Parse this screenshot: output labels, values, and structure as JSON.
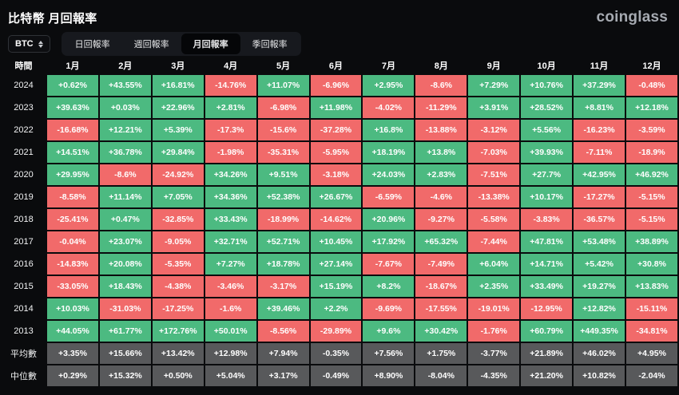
{
  "header": {
    "title": "比特幣 月回報率",
    "logo": "coinglass"
  },
  "toolbar": {
    "symbol": "BTC",
    "tabs": [
      {
        "label": "日回報率",
        "active": false
      },
      {
        "label": "週回報率",
        "active": false
      },
      {
        "label": "月回報率",
        "active": true
      },
      {
        "label": "季回報率",
        "active": false
      }
    ]
  },
  "colors": {
    "positive": "#4CBA81",
    "negative": "#F16A6A",
    "summary": "#58595B",
    "background": "#0A0B0D"
  },
  "chart_data": {
    "type": "table",
    "title": "比特幣 月回報率",
    "columns": [
      "時間",
      "1月",
      "2月",
      "3月",
      "4月",
      "5月",
      "6月",
      "7月",
      "8月",
      "9月",
      "10月",
      "11月",
      "12月"
    ],
    "rows": [
      {
        "label": "2024",
        "kind": "year",
        "values": [
          "+0.62%",
          "+43.55%",
          "+16.81%",
          "-14.76%",
          "+11.07%",
          "-6.96%",
          "+2.95%",
          "-8.6%",
          "+7.29%",
          "+10.76%",
          "+37.29%",
          "-0.48%"
        ]
      },
      {
        "label": "2023",
        "kind": "year",
        "values": [
          "+39.63%",
          "+0.03%",
          "+22.96%",
          "+2.81%",
          "-6.98%",
          "+11.98%",
          "-4.02%",
          "-11.29%",
          "+3.91%",
          "+28.52%",
          "+8.81%",
          "+12.18%"
        ]
      },
      {
        "label": "2022",
        "kind": "year",
        "values": [
          "-16.68%",
          "+12.21%",
          "+5.39%",
          "-17.3%",
          "-15.6%",
          "-37.28%",
          "+16.8%",
          "-13.88%",
          "-3.12%",
          "+5.56%",
          "-16.23%",
          "-3.59%"
        ]
      },
      {
        "label": "2021",
        "kind": "year",
        "values": [
          "+14.51%",
          "+36.78%",
          "+29.84%",
          "-1.98%",
          "-35.31%",
          "-5.95%",
          "+18.19%",
          "+13.8%",
          "-7.03%",
          "+39.93%",
          "-7.11%",
          "-18.9%"
        ]
      },
      {
        "label": "2020",
        "kind": "year",
        "values": [
          "+29.95%",
          "-8.6%",
          "-24.92%",
          "+34.26%",
          "+9.51%",
          "-3.18%",
          "+24.03%",
          "+2.83%",
          "-7.51%",
          "+27.7%",
          "+42.95%",
          "+46.92%"
        ]
      },
      {
        "label": "2019",
        "kind": "year",
        "values": [
          "-8.58%",
          "+11.14%",
          "+7.05%",
          "+34.36%",
          "+52.38%",
          "+26.67%",
          "-6.59%",
          "-4.6%",
          "-13.38%",
          "+10.17%",
          "-17.27%",
          "-5.15%"
        ]
      },
      {
        "label": "2018",
        "kind": "year",
        "values": [
          "-25.41%",
          "+0.47%",
          "-32.85%",
          "+33.43%",
          "-18.99%",
          "-14.62%",
          "+20.96%",
          "-9.27%",
          "-5.58%",
          "-3.83%",
          "-36.57%",
          "-5.15%"
        ]
      },
      {
        "label": "2017",
        "kind": "year",
        "values": [
          "-0.04%",
          "+23.07%",
          "-9.05%",
          "+32.71%",
          "+52.71%",
          "+10.45%",
          "+17.92%",
          "+65.32%",
          "-7.44%",
          "+47.81%",
          "+53.48%",
          "+38.89%"
        ]
      },
      {
        "label": "2016",
        "kind": "year",
        "values": [
          "-14.83%",
          "+20.08%",
          "-5.35%",
          "+7.27%",
          "+18.78%",
          "+27.14%",
          "-7.67%",
          "-7.49%",
          "+6.04%",
          "+14.71%",
          "+5.42%",
          "+30.8%"
        ]
      },
      {
        "label": "2015",
        "kind": "year",
        "values": [
          "-33.05%",
          "+18.43%",
          "-4.38%",
          "-3.46%",
          "-3.17%",
          "+15.19%",
          "+8.2%",
          "-18.67%",
          "+2.35%",
          "+33.49%",
          "+19.27%",
          "+13.83%"
        ]
      },
      {
        "label": "2014",
        "kind": "year",
        "values": [
          "+10.03%",
          "-31.03%",
          "-17.25%",
          "-1.6%",
          "+39.46%",
          "+2.2%",
          "-9.69%",
          "-17.55%",
          "-19.01%",
          "-12.95%",
          "+12.82%",
          "-15.11%"
        ]
      },
      {
        "label": "2013",
        "kind": "year",
        "values": [
          "+44.05%",
          "+61.77%",
          "+172.76%",
          "+50.01%",
          "-8.56%",
          "-29.89%",
          "+9.6%",
          "+30.42%",
          "-1.76%",
          "+60.79%",
          "+449.35%",
          "-34.81%"
        ]
      },
      {
        "label": "平均數",
        "kind": "summary",
        "values": [
          "+3.35%",
          "+15.66%",
          "+13.42%",
          "+12.98%",
          "+7.94%",
          "-0.35%",
          "+7.56%",
          "+1.75%",
          "-3.77%",
          "+21.89%",
          "+46.02%",
          "+4.95%"
        ]
      },
      {
        "label": "中位數",
        "kind": "summary",
        "values": [
          "+0.29%",
          "+15.32%",
          "+0.50%",
          "+5.04%",
          "+3.17%",
          "-0.49%",
          "+8.90%",
          "-8.04%",
          "-4.35%",
          "+21.20%",
          "+10.82%",
          "-2.04%"
        ]
      }
    ]
  }
}
